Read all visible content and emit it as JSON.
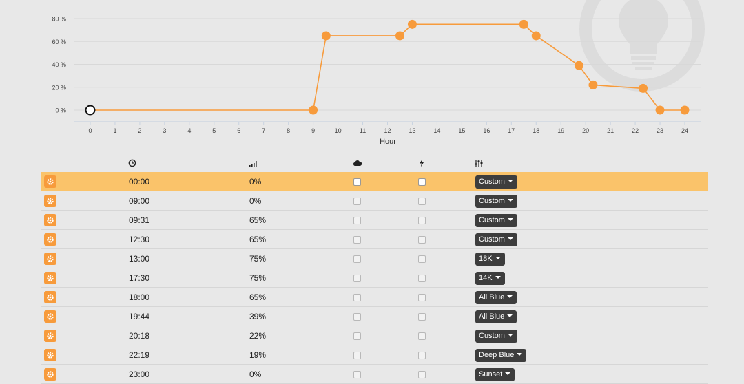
{
  "colors": {
    "accent": "#f79b3c",
    "active_row": "#fac36a",
    "dropdown": "#3d3d3d"
  },
  "chart_data": {
    "type": "line",
    "xlabel": "Hour",
    "ylabel": "",
    "x_ticks": [
      "0",
      "1",
      "2",
      "3",
      "4",
      "5",
      "6",
      "7",
      "8",
      "9",
      "10",
      "11",
      "12",
      "13",
      "14",
      "15",
      "16",
      "17",
      "18",
      "19",
      "20",
      "21",
      "22",
      "23",
      "24"
    ],
    "y_ticks": [
      "0 %",
      "20 %",
      "40 %",
      "60 %",
      "80 %"
    ],
    "xlim": [
      0,
      24
    ],
    "ylim": [
      0,
      80
    ],
    "grid": true,
    "series": [
      {
        "x": [
          0,
          9,
          9.52,
          12.5,
          13,
          17.5,
          18,
          19.73,
          20.3,
          22.32,
          23,
          24
        ],
        "y": [
          0,
          0,
          65,
          65,
          75,
          75,
          65,
          39,
          22,
          19,
          0,
          0
        ]
      }
    ]
  },
  "table": {
    "header_icons": [
      "clock-icon",
      "signal-icon",
      "cloud-icon",
      "bolt-icon",
      "sliders-icon"
    ],
    "rows": [
      {
        "time": "00:00",
        "intensity": "0%",
        "preset": "Custom"
      },
      {
        "time": "09:00",
        "intensity": "0%",
        "preset": "Custom"
      },
      {
        "time": "09:31",
        "intensity": "65%",
        "preset": "Custom"
      },
      {
        "time": "12:30",
        "intensity": "65%",
        "preset": "Custom"
      },
      {
        "time": "13:00",
        "intensity": "75%",
        "preset": "18K"
      },
      {
        "time": "17:30",
        "intensity": "75%",
        "preset": "14K"
      },
      {
        "time": "18:00",
        "intensity": "65%",
        "preset": "All Blue"
      },
      {
        "time": "19:44",
        "intensity": "39%",
        "preset": "All Blue"
      },
      {
        "time": "20:18",
        "intensity": "22%",
        "preset": "Custom"
      },
      {
        "time": "22:19",
        "intensity": "19%",
        "preset": "Deep Blue"
      },
      {
        "time": "23:00",
        "intensity": "0%",
        "preset": "Sunset"
      }
    ]
  }
}
